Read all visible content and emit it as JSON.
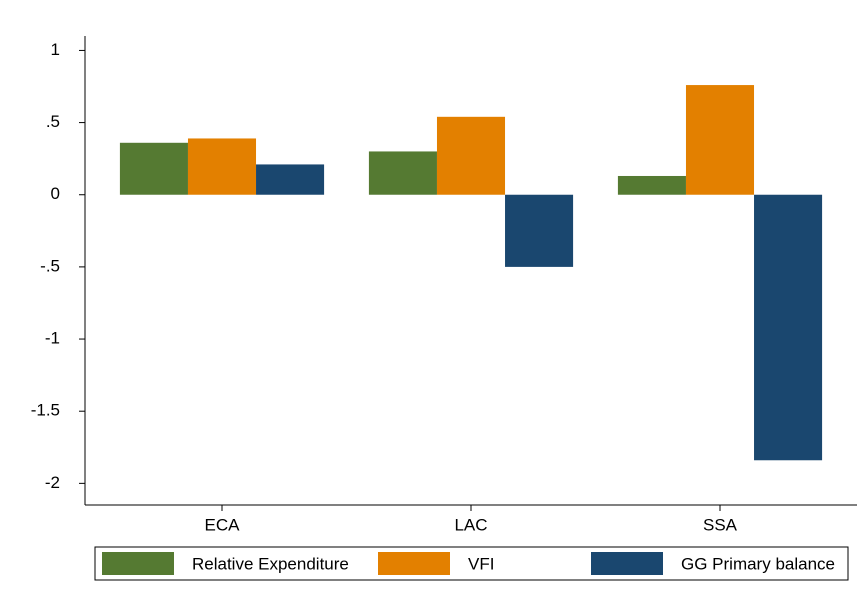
{
  "chart_data": {
    "type": "bar",
    "categories": [
      "ECA",
      "LAC",
      "SSA"
    ],
    "series": [
      {
        "name": "Relative Expenditure",
        "color": "#557a32",
        "values": [
          0.36,
          0.3,
          0.13
        ]
      },
      {
        "name": "VFI",
        "color": "#e38000",
        "values": [
          0.39,
          0.54,
          0.76
        ]
      },
      {
        "name": "GG Primary balance",
        "color": "#1a476f",
        "values": [
          0.21,
          -0.5,
          -1.84
        ]
      }
    ],
    "ylim": [
      -2.15,
      1.1
    ],
    "yticks": [
      1,
      {
        "value": 0.5,
        "label": ".5"
      },
      0,
      {
        "value": -0.5,
        "label": "-.5"
      },
      -1,
      -1.5,
      -2
    ],
    "grid": false,
    "legend": "bottom"
  }
}
